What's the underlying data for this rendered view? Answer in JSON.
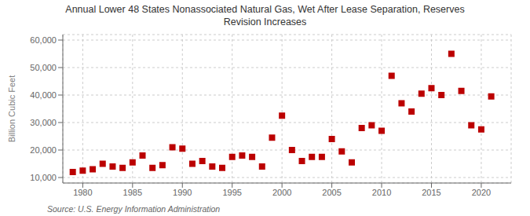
{
  "chart_data": {
    "type": "scatter",
    "title": "Annual Lower 48 States Nonassociated Natural Gas, Wet After Lease Separation, Reserves\nRevision Increases",
    "ylabel": "Billion Cubic Feet",
    "source": "Source: U.S. Energy Information Administration",
    "color": "#bb0000",
    "marker": "square",
    "grid": true,
    "xlim": [
      1978,
      2023
    ],
    "ylim": [
      8000,
      62000
    ],
    "xticks": [
      1980,
      1985,
      1990,
      1995,
      2000,
      2005,
      2010,
      2015,
      2020
    ],
    "yticks": [
      {
        "value": 10000,
        "label": "10,000"
      },
      {
        "value": 20000,
        "label": "20,000"
      },
      {
        "value": 30000,
        "label": "30,000"
      },
      {
        "value": 40000,
        "label": "40,000"
      },
      {
        "value": 50000,
        "label": "50,000"
      },
      {
        "value": 60000,
        "label": "60,000"
      }
    ],
    "x": [
      1979,
      1980,
      1981,
      1982,
      1983,
      1984,
      1985,
      1986,
      1987,
      1988,
      1989,
      1990,
      1991,
      1992,
      1993,
      1994,
      1995,
      1996,
      1997,
      1998,
      1999,
      2000,
      2001,
      2002,
      2003,
      2004,
      2005,
      2006,
      2007,
      2008,
      2009,
      2010,
      2011,
      2012,
      2013,
      2014,
      2015,
      2016,
      2017,
      2018,
      2019,
      2020,
      2021
    ],
    "values": [
      12000,
      12500,
      13000,
      15000,
      14000,
      13500,
      15500,
      18000,
      13500,
      14500,
      21000,
      20500,
      15000,
      16000,
      14000,
      13500,
      17500,
      18000,
      17500,
      14000,
      24500,
      32500,
      20000,
      16000,
      17500,
      17500,
      24000,
      19500,
      15500,
      28000,
      29000,
      27000,
      47000,
      37000,
      34000,
      40500,
      42500,
      40000,
      55000,
      41500,
      29000,
      27500,
      39500
    ]
  }
}
